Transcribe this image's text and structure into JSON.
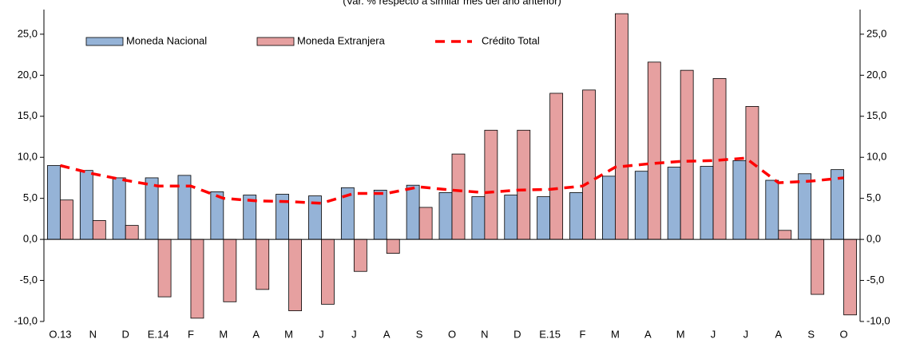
{
  "chart_data": {
    "type": "bar_line",
    "subtitle": "(Var. % respecto a similar mes del año anterior)",
    "categories": [
      "O.13",
      "N",
      "D",
      "E.14",
      "F",
      "M",
      "A",
      "M",
      "J",
      "J",
      "A",
      "S",
      "O",
      "N",
      "D",
      "E.15",
      "F",
      "M",
      "A",
      "M",
      "J",
      "J",
      "A",
      "S",
      "O"
    ],
    "series": [
      {
        "name": "Moneda Nacional",
        "type": "bar",
        "color": "#95b3d7",
        "values": [
          9.0,
          8.4,
          7.5,
          7.5,
          7.8,
          5.8,
          5.4,
          5.5,
          5.3,
          6.3,
          6.0,
          6.6,
          5.7,
          5.2,
          5.4,
          5.2,
          5.7,
          7.7,
          8.3,
          8.8,
          8.9,
          9.6,
          7.2,
          8.0,
          8.5
        ]
      },
      {
        "name": "Moneda Extranjera",
        "type": "bar",
        "color": "#e6a0a0",
        "values": [
          4.8,
          2.3,
          1.7,
          -7.0,
          -9.6,
          -7.6,
          -6.1,
          -8.7,
          -7.9,
          -3.9,
          -1.7,
          3.9,
          10.4,
          13.3,
          13.3,
          17.8,
          18.2,
          27.5,
          21.6,
          20.6,
          19.6,
          16.2,
          1.1,
          -6.7,
          -9.2
        ]
      },
      {
        "name": "Crédito Total",
        "type": "line",
        "color": "#ff0000",
        "values": [
          9.0,
          8.0,
          7.2,
          6.5,
          6.5,
          5.0,
          4.7,
          4.6,
          4.4,
          5.6,
          5.6,
          6.4,
          6.0,
          5.7,
          6.0,
          6.1,
          6.5,
          8.8,
          9.2,
          9.5,
          9.6,
          9.9,
          6.9,
          7.1,
          7.5
        ]
      }
    ],
    "ylim": [
      -10,
      28
    ],
    "yticks": [
      {
        "value": -10,
        "label": "-10,0"
      },
      {
        "value": -5,
        "label": "-5,0"
      },
      {
        "value": 0,
        "label": "0,0"
      },
      {
        "value": 5,
        "label": "5,0"
      },
      {
        "value": 10,
        "label": "10,0"
      },
      {
        "value": 15,
        "label": "15,0"
      },
      {
        "value": 20,
        "label": "20,0"
      },
      {
        "value": 25,
        "label": "25,0"
      }
    ],
    "y2lim": [
      -10,
      28
    ],
    "y2ticks": [
      {
        "value": -10,
        "label": "-10,0"
      },
      {
        "value": -5,
        "label": "-5,0"
      },
      {
        "value": 0,
        "label": "0,0"
      },
      {
        "value": 5,
        "label": "5,0"
      },
      {
        "value": 10,
        "label": "10,0"
      },
      {
        "value": 15,
        "label": "15,0"
      },
      {
        "value": 20,
        "label": "20,0"
      },
      {
        "value": 25,
        "label": "25,0"
      }
    ],
    "legend": "top-left"
  }
}
